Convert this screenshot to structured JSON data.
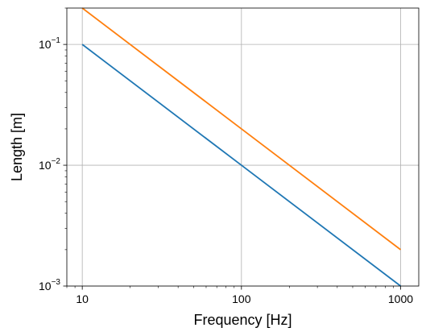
{
  "chart_data": {
    "type": "line",
    "xlabel": "Frequency [Hz]",
    "ylabel": "Length [m]",
    "xscale": "log",
    "yscale": "log",
    "xlim": [
      8,
      1300
    ],
    "ylim": [
      0.001,
      0.2
    ],
    "grid": true,
    "x_ticks": [
      {
        "value": 10,
        "label": "10"
      },
      {
        "value": 100,
        "label": "100"
      },
      {
        "value": 1000,
        "label": "1000"
      }
    ],
    "y_ticks": [
      {
        "value": 0.001,
        "base": "10",
        "exp": "−3"
      },
      {
        "value": 0.01,
        "base": "10",
        "exp": "−2"
      },
      {
        "value": 0.1,
        "base": "10",
        "exp": "−1"
      }
    ],
    "series": [
      {
        "color": "#1f77b4",
        "x": [
          10,
          100,
          1000
        ],
        "y": [
          0.1,
          0.01,
          0.001
        ]
      },
      {
        "color": "#ff7f0e",
        "x": [
          10,
          100,
          1000
        ],
        "y": [
          0.2,
          0.02,
          0.002
        ]
      }
    ]
  }
}
